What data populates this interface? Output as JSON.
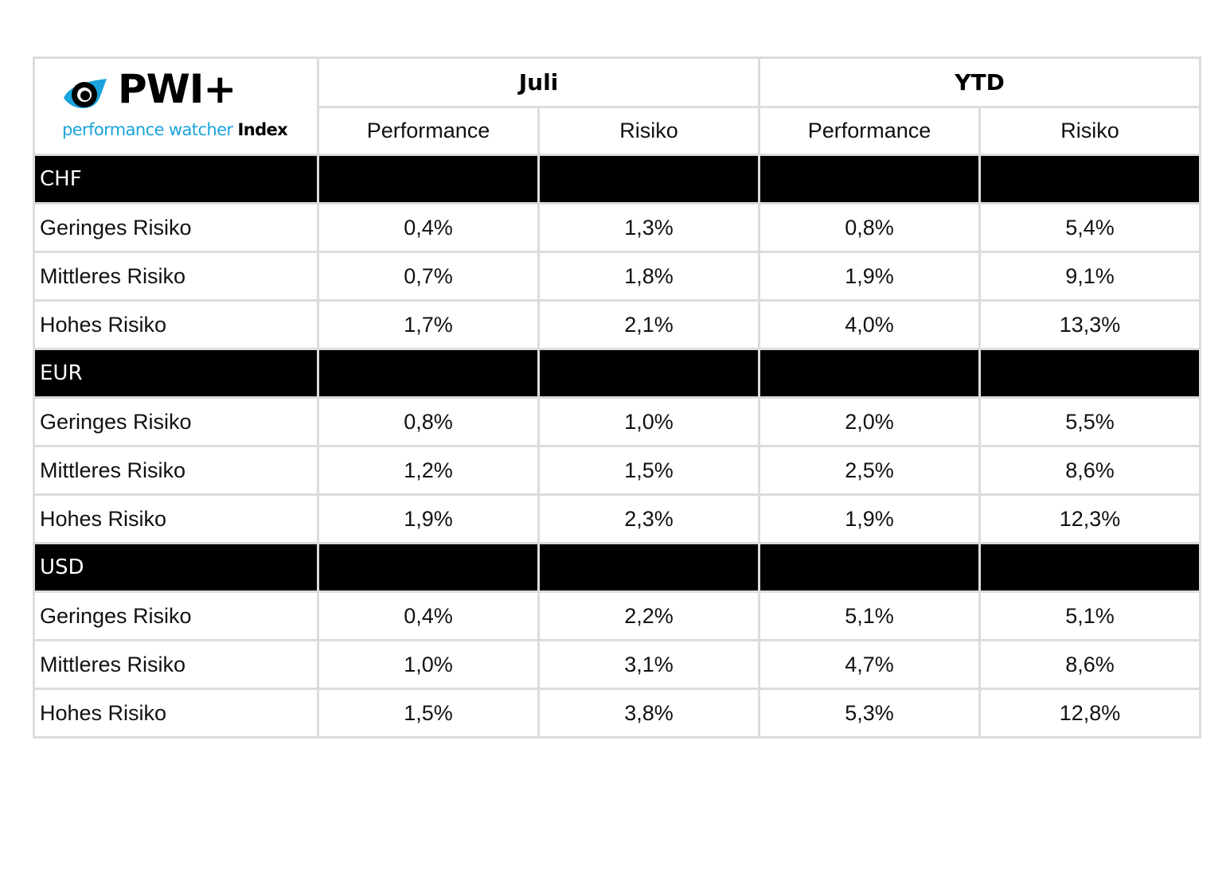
{
  "logo": {
    "brand": "PWI+",
    "tagline_part1": "performance watcher ",
    "tagline_part2": "Index",
    "accent_color": "#1aa3dc",
    "icon": "eye-logo-icon"
  },
  "header": {
    "groups": [
      "Juli",
      "YTD"
    ],
    "subcolumns": [
      "Performance",
      "Risiko",
      "Performance",
      "Risiko"
    ]
  },
  "sections": [
    {
      "currency": "CHF",
      "rows": [
        {
          "label": "Geringes Risiko",
          "values": [
            "0,4%",
            "1,3%",
            "0,8%",
            "5,4%"
          ]
        },
        {
          "label": "Mittleres Risiko",
          "values": [
            "0,7%",
            "1,8%",
            "1,9%",
            "9,1%"
          ]
        },
        {
          "label": "Hohes Risiko",
          "values": [
            "1,7%",
            "2,1%",
            "4,0%",
            "13,3%"
          ]
        }
      ]
    },
    {
      "currency": "EUR",
      "rows": [
        {
          "label": "Geringes Risiko",
          "values": [
            "0,8%",
            "1,0%",
            "2,0%",
            "5,5%"
          ]
        },
        {
          "label": "Mittleres Risiko",
          "values": [
            "1,2%",
            "1,5%",
            "2,5%",
            "8,6%"
          ]
        },
        {
          "label": "Hohes Risiko",
          "values": [
            "1,9%",
            "2,3%",
            "1,9%",
            "12,3%"
          ]
        }
      ]
    },
    {
      "currency": "USD",
      "rows": [
        {
          "label": "Geringes Risiko",
          "values": [
            "0,4%",
            "2,2%",
            "5,1%",
            "5,1%"
          ]
        },
        {
          "label": "Mittleres Risiko",
          "values": [
            "1,0%",
            "3,1%",
            "4,7%",
            "8,6%"
          ]
        },
        {
          "label": "Hohes Risiko",
          "values": [
            "1,5%",
            "3,8%",
            "5,3%",
            "12,8%"
          ]
        }
      ]
    }
  ]
}
